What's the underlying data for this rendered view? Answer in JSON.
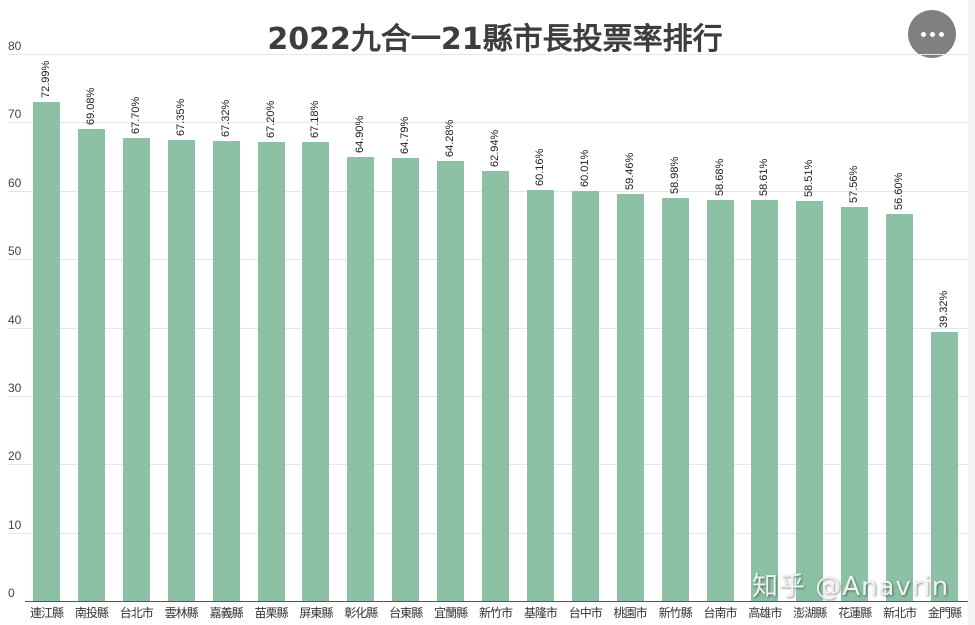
{
  "header": {
    "title": "2022九合一21縣市長投票率排行",
    "more_icon": "more-horizontal-icon"
  },
  "watermark": "知乎 @Anavrin",
  "colors": {
    "bar": "#8cc1a6",
    "title": "#3d3d3d",
    "more_button": "#808080"
  },
  "chart_data": {
    "type": "bar",
    "title": "2022九合一21縣市長投票率排行",
    "xlabel": "",
    "ylabel": "",
    "ylim": [
      0,
      80
    ],
    "yticks": [
      0,
      10,
      20,
      30,
      40,
      50,
      60,
      70,
      80
    ],
    "grid": true,
    "legend": "none",
    "categories": [
      "連江縣",
      "南投縣",
      "台北市",
      "雲林縣",
      "嘉義縣",
      "苗栗縣",
      "屏東縣",
      "彰化縣",
      "台東縣",
      "宜蘭縣",
      "新竹市",
      "基隆市",
      "台中市",
      "桃園市",
      "新竹縣",
      "台南市",
      "高雄市",
      "澎湖縣",
      "花蓮縣",
      "新北市",
      "金門縣"
    ],
    "values": [
      72.99,
      69.08,
      67.7,
      67.35,
      67.32,
      67.2,
      67.18,
      64.9,
      64.79,
      64.28,
      62.94,
      60.16,
      60.01,
      59.46,
      58.98,
      58.68,
      58.61,
      58.51,
      57.56,
      56.6,
      39.32
    ],
    "data_labels": [
      "72.99%",
      "69.08%",
      "67.70%",
      "67.35%",
      "67.32%",
      "67.20%",
      "67.18%",
      "64.90%",
      "64.79%",
      "64.28%",
      "62.94%",
      "60.16%",
      "60.01%",
      "59.46%",
      "58.98%",
      "58.68%",
      "58.61%",
      "58.51%",
      "57.56%",
      "56.60%",
      "39.32%"
    ]
  }
}
